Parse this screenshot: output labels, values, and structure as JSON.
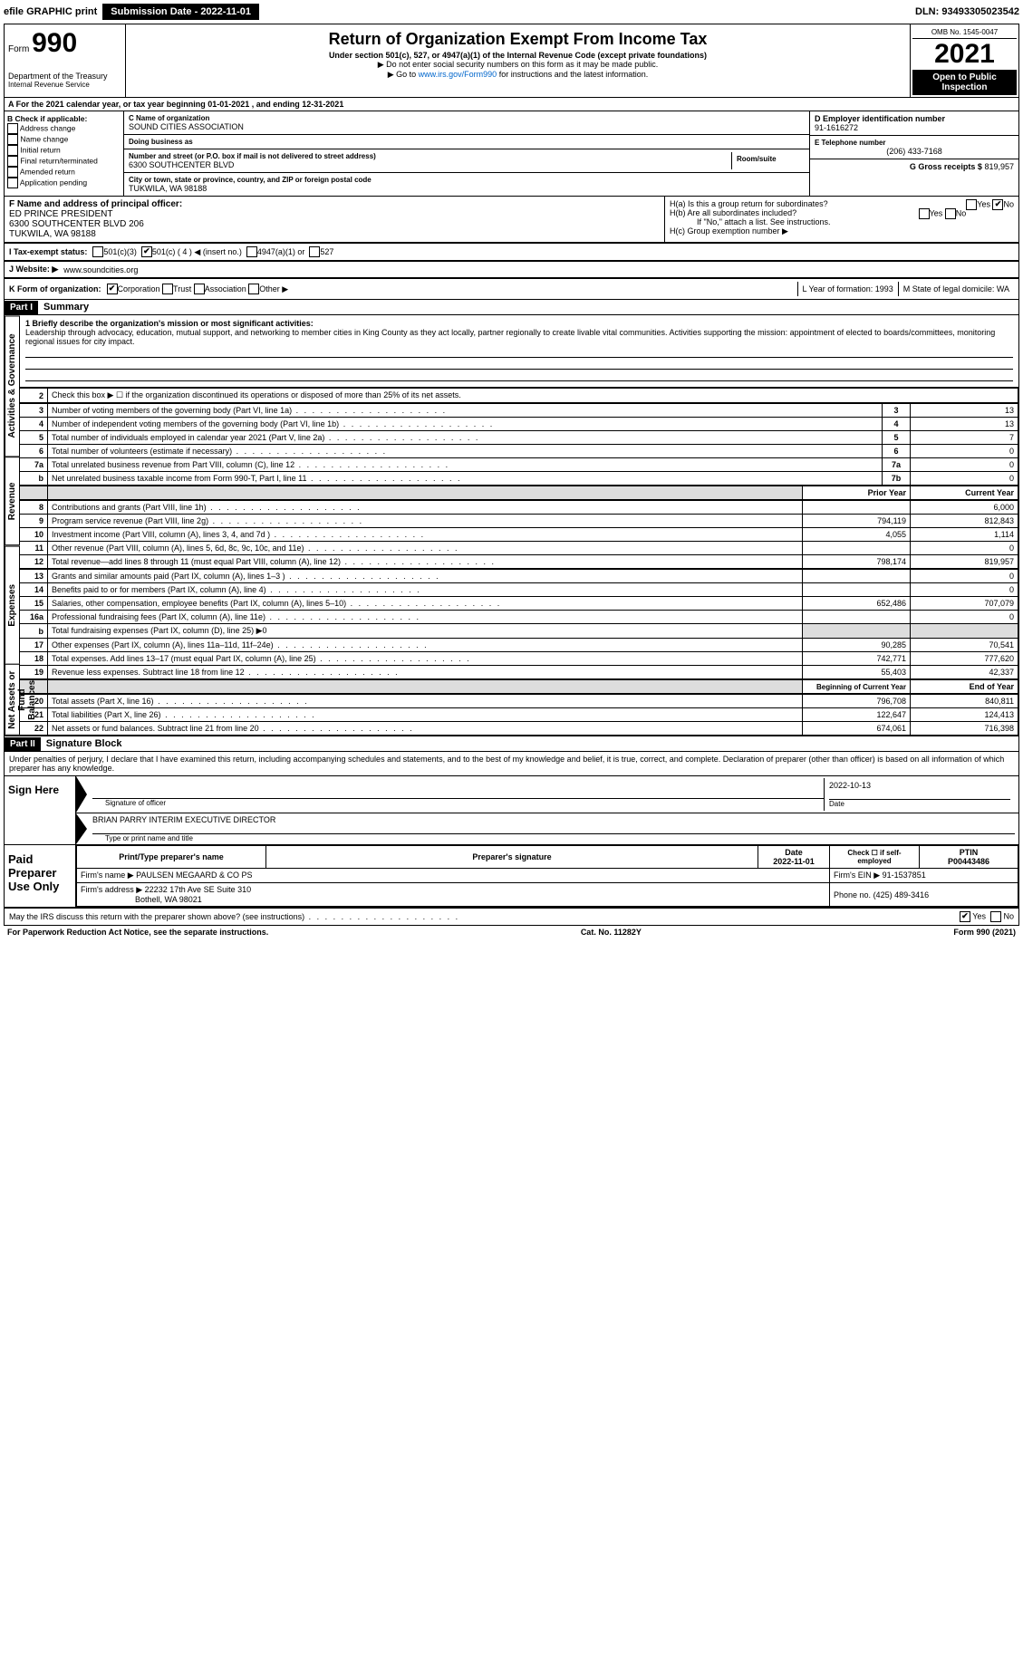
{
  "topbar": {
    "efile": "efile GRAPHIC print",
    "submission": "Submission Date - 2022-11-01",
    "dln": "DLN: 93493305023542"
  },
  "header": {
    "form_label": "Form",
    "form_number": "990",
    "dept": "Department of the Treasury",
    "irs": "Internal Revenue Service",
    "title": "Return of Organization Exempt From Income Tax",
    "subtitle": "Under section 501(c), 527, or 4947(a)(1) of the Internal Revenue Code (except private foundations)",
    "note1": "▶ Do not enter social security numbers on this form as it may be made public.",
    "note2_pre": "▶ Go to ",
    "note2_link": "www.irs.gov/Form990",
    "note2_post": " for instructions and the latest information.",
    "omb": "OMB No. 1545-0047",
    "year": "2021",
    "open": "Open to Public Inspection"
  },
  "rowA": "A For the 2021 calendar year, or tax year beginning 01-01-2021    , and ending 12-31-2021",
  "colB": {
    "title": "B Check if applicable:",
    "items": [
      "Address change",
      "Name change",
      "Initial return",
      "Final return/terminated",
      "Amended return",
      "Application pending"
    ]
  },
  "colC": {
    "name_label": "C Name of organization",
    "name": "SOUND CITIES ASSOCIATION",
    "dba_label": "Doing business as",
    "dba": "",
    "addr_label": "Number and street (or P.O. box if mail is not delivered to street address)",
    "room_label": "Room/suite",
    "addr": "6300 SOUTHCENTER BLVD",
    "city_label": "City or town, state or province, country, and ZIP or foreign postal code",
    "city": "TUKWILA, WA  98188"
  },
  "colD": {
    "ein_label": "D Employer identification number",
    "ein": "91-1616272",
    "phone_label": "E Telephone number",
    "phone": "(206) 433-7168",
    "gross_label": "G Gross receipts $",
    "gross": "819,957"
  },
  "rowF": {
    "label": "F Name and address of principal officer:",
    "name": "ED PRINCE PRESIDENT",
    "addr1": "6300 SOUTHCENTER BLVD 206",
    "addr2": "TUKWILA, WA  98188"
  },
  "rowH": {
    "a": "H(a)  Is this a group return for subordinates?",
    "b": "H(b)  Are all subordinates included?",
    "b_note": "If \"No,\" attach a list. See instructions.",
    "c": "H(c)  Group exemption number ▶",
    "yes": "Yes",
    "no": "No"
  },
  "rowI": {
    "label": "I   Tax-exempt status:",
    "opts": [
      "501(c)(3)",
      "501(c) ( 4 ) ◀ (insert no.)",
      "4947(a)(1) or",
      "527"
    ]
  },
  "rowJ": {
    "label": "J   Website: ▶",
    "value": "www.soundcities.org"
  },
  "rowK": {
    "label": "K Form of organization:",
    "opts": [
      "Corporation",
      "Trust",
      "Association",
      "Other ▶"
    ]
  },
  "rowL": {
    "l": "L Year of formation: 1993",
    "m": "M State of legal domicile: WA"
  },
  "part1": {
    "hdr": "Part I",
    "title": "Summary",
    "vtab1": "Activities & Governance",
    "vtab2": "Revenue",
    "vtab3": "Expenses",
    "vtab4": "Net Assets or Fund Balances",
    "line1_label": "1 Briefly describe the organization's mission or most significant activities:",
    "line1_text": "Leadership through advocacy, education, mutual support, and networking to member cities in King County as they act locally, partner regionally to create livable vital communities. Activities supporting the mission: appointment of elected to boards/committees, monitoring regional issues for city impact.",
    "line2": "Check this box ▶ ☐  if the organization discontinued its operations or disposed of more than 25% of its net assets.",
    "rows_top": [
      {
        "n": "3",
        "t": "Number of voting members of the governing body (Part VI, line 1a)",
        "b": "3",
        "v": "13"
      },
      {
        "n": "4",
        "t": "Number of independent voting members of the governing body (Part VI, line 1b)",
        "b": "4",
        "v": "13"
      },
      {
        "n": "5",
        "t": "Total number of individuals employed in calendar year 2021 (Part V, line 2a)",
        "b": "5",
        "v": "7"
      },
      {
        "n": "6",
        "t": "Total number of volunteers (estimate if necessary)",
        "b": "6",
        "v": "0"
      },
      {
        "n": "7a",
        "t": "Total unrelated business revenue from Part VIII, column (C), line 12",
        "b": "7a",
        "v": "0"
      },
      {
        "n": "b",
        "t": "Net unrelated business taxable income from Form 990-T, Part I, line 11",
        "b": "7b",
        "v": "0"
      }
    ],
    "col_hdr_prior": "Prior Year",
    "col_hdr_curr": "Current Year",
    "rows_rev": [
      {
        "n": "8",
        "t": "Contributions and grants (Part VIII, line 1h)",
        "p": "",
        "c": "6,000"
      },
      {
        "n": "9",
        "t": "Program service revenue (Part VIII, line 2g)",
        "p": "794,119",
        "c": "812,843"
      },
      {
        "n": "10",
        "t": "Investment income (Part VIII, column (A), lines 3, 4, and 7d )",
        "p": "4,055",
        "c": "1,114"
      },
      {
        "n": "11",
        "t": "Other revenue (Part VIII, column (A), lines 5, 6d, 8c, 9c, 10c, and 11e)",
        "p": "",
        "c": "0"
      },
      {
        "n": "12",
        "t": "Total revenue—add lines 8 through 11 (must equal Part VIII, column (A), line 12)",
        "p": "798,174",
        "c": "819,957"
      }
    ],
    "rows_exp": [
      {
        "n": "13",
        "t": "Grants and similar amounts paid (Part IX, column (A), lines 1–3 )",
        "p": "",
        "c": "0"
      },
      {
        "n": "14",
        "t": "Benefits paid to or for members (Part IX, column (A), line 4)",
        "p": "",
        "c": "0"
      },
      {
        "n": "15",
        "t": "Salaries, other compensation, employee benefits (Part IX, column (A), lines 5–10)",
        "p": "652,486",
        "c": "707,079"
      },
      {
        "n": "16a",
        "t": "Professional fundraising fees (Part IX, column (A), line 11e)",
        "p": "",
        "c": "0"
      },
      {
        "n": "b",
        "t": "Total fundraising expenses (Part IX, column (D), line 25) ▶0",
        "shade": true
      },
      {
        "n": "17",
        "t": "Other expenses (Part IX, column (A), lines 11a–11d, 11f–24e)",
        "p": "90,285",
        "c": "70,541"
      },
      {
        "n": "18",
        "t": "Total expenses. Add lines 13–17 (must equal Part IX, column (A), line 25)",
        "p": "742,771",
        "c": "777,620"
      },
      {
        "n": "19",
        "t": "Revenue less expenses. Subtract line 18 from line 12",
        "p": "55,403",
        "c": "42,337"
      }
    ],
    "col_hdr_beg": "Beginning of Current Year",
    "col_hdr_end": "End of Year",
    "rows_net": [
      {
        "n": "20",
        "t": "Total assets (Part X, line 16)",
        "p": "796,708",
        "c": "840,811"
      },
      {
        "n": "21",
        "t": "Total liabilities (Part X, line 26)",
        "p": "122,647",
        "c": "124,413"
      },
      {
        "n": "22",
        "t": "Net assets or fund balances. Subtract line 21 from line 20",
        "p": "674,061",
        "c": "716,398"
      }
    ]
  },
  "part2": {
    "hdr": "Part II",
    "title": "Signature Block",
    "decl": "Under penalties of perjury, I declare that I have examined this return, including accompanying schedules and statements, and to the best of my knowledge and belief, it is true, correct, and complete. Declaration of preparer (other than officer) is based on all information of which preparer has any knowledge.",
    "sign_here": "Sign Here",
    "sig_officer": "Signature of officer",
    "sig_date": "2022-10-13",
    "date_lbl": "Date",
    "officer_name": "BRIAN PARRY INTERIM EXECUTIVE DIRECTOR",
    "type_name": "Type or print name and title",
    "paid_prep": "Paid Preparer Use Only",
    "prep_name_lbl": "Print/Type preparer's name",
    "prep_sig_lbl": "Preparer's signature",
    "prep_date_lbl": "Date",
    "prep_date": "2022-11-01",
    "check_self": "Check ☐ if self-employed",
    "ptin_lbl": "PTIN",
    "ptin": "P00443486",
    "firm_name_lbl": "Firm's name    ▶",
    "firm_name": "PAULSEN MEGAARD & CO PS",
    "firm_ein_lbl": "Firm's EIN ▶",
    "firm_ein": "91-1537851",
    "firm_addr_lbl": "Firm's address ▶",
    "firm_addr1": "22232 17th Ave SE Suite 310",
    "firm_addr2": "Bothell, WA  98021",
    "firm_phone_lbl": "Phone no.",
    "firm_phone": "(425) 489-3416",
    "may_irs": "May the IRS discuss this return with the preparer shown above? (see instructions)"
  },
  "footer": {
    "pra": "For Paperwork Reduction Act Notice, see the separate instructions.",
    "cat": "Cat. No. 11282Y",
    "form": "Form 990 (2021)"
  }
}
